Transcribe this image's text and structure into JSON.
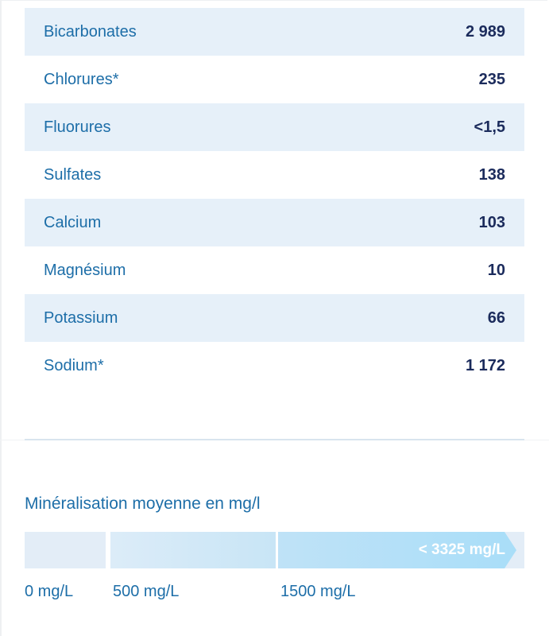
{
  "minerals": [
    {
      "name": "Bicarbonates",
      "value": "2 989"
    },
    {
      "name": "Chlorures*",
      "value": "235"
    },
    {
      "name": "Fluorures",
      "value": "<1,5"
    },
    {
      "name": "Sulfates",
      "value": "138"
    },
    {
      "name": "Calcium",
      "value": "103"
    },
    {
      "name": "Magnésium",
      "value": "10"
    },
    {
      "name": "Potassium",
      "value": "66"
    },
    {
      "name": "Sodium*",
      "value": "1 172"
    }
  ],
  "mineralisation": {
    "title": "Minéralisation moyenne en mg/l",
    "value_label": "< 3325 mg/L",
    "scale_labels": [
      "0 mg/L",
      "500 mg/L",
      "1500 mg/L"
    ],
    "colors": {
      "low": "#e3edf7",
      "mid": "#c8e5f6",
      "high": "#a9def8"
    }
  }
}
